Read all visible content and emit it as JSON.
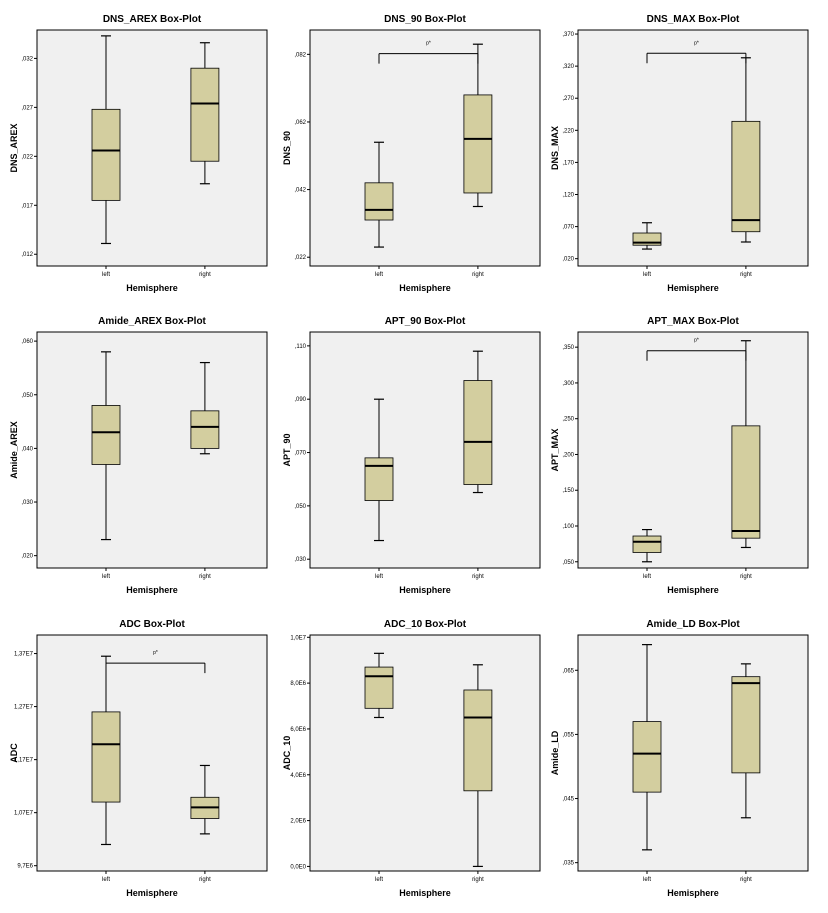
{
  "colors": {
    "box": "#d3ce9f",
    "plot_bg": "#f0f0f0",
    "line": "#000000"
  },
  "chart_data": [
    {
      "type": "box",
      "title": "DNS_AREX Box-Plot",
      "xlabel": "Hemisphere",
      "ylabel": "DNS_AREX",
      "categories": [
        "left",
        "right"
      ],
      "ylim": [
        0.0108,
        0.0349
      ],
      "yticks": [
        0.012,
        0.017,
        0.022,
        0.027,
        0.032
      ],
      "ytick_labels": [
        ",012",
        ",017",
        ",022",
        ",027",
        ",032"
      ],
      "boxes": [
        {
          "min": 0.0131,
          "q1": 0.0175,
          "median": 0.0226,
          "q3": 0.0268,
          "max": 0.0343
        },
        {
          "min": 0.0192,
          "q1": 0.0215,
          "median": 0.0274,
          "q3": 0.031,
          "max": 0.0336
        }
      ],
      "significance": null
    },
    {
      "type": "box",
      "title": "DNS_90 Box-Plot",
      "xlabel": "Hemisphere",
      "ylabel": "DNS_90",
      "categories": [
        "left",
        "right"
      ],
      "ylim": [
        0.0194,
        0.0892
      ],
      "yticks": [
        0.022,
        0.042,
        0.062,
        0.082
      ],
      "ytick_labels": [
        ",022",
        ",042",
        ",062",
        ",082"
      ],
      "boxes": [
        {
          "min": 0.025,
          "q1": 0.033,
          "median": 0.036,
          "q3": 0.044,
          "max": 0.056
        },
        {
          "min": 0.037,
          "q1": 0.041,
          "median": 0.057,
          "q3": 0.07,
          "max": 0.085
        }
      ],
      "significance": {
        "label": "p*",
        "value": 0.0822
      }
    },
    {
      "type": "box",
      "title": "DNS_MAX Box-Plot",
      "xlabel": "Hemisphere",
      "ylabel": "DNS_MAX",
      "categories": [
        "left",
        "right"
      ],
      "ylim": [
        0.0086,
        0.3763
      ],
      "yticks": [
        0.02,
        0.07,
        0.12,
        0.17,
        0.22,
        0.27,
        0.32,
        0.37
      ],
      "ytick_labels": [
        ",020",
        ",070",
        ",120",
        ",170",
        ",220",
        ",270",
        ",320",
        ",370"
      ],
      "boxes": [
        {
          "min": 0.035,
          "q1": 0.041,
          "median": 0.045,
          "q3": 0.06,
          "max": 0.076
        },
        {
          "min": 0.046,
          "q1": 0.062,
          "median": 0.08,
          "q3": 0.234,
          "max": 0.333
        }
      ],
      "significance": {
        "label": "p*",
        "value": 0.34
      }
    },
    {
      "type": "box",
      "title": "Amide_AREX Box-Plot",
      "xlabel": "Hemisphere",
      "ylabel": "Amide_AREX",
      "categories": [
        "left",
        "right"
      ],
      "ylim": [
        0.0177,
        0.0617
      ],
      "yticks": [
        0.02,
        0.03,
        0.04,
        0.05,
        0.06
      ],
      "ytick_labels": [
        ",020",
        ",030",
        ",040",
        ",050",
        ",060"
      ],
      "boxes": [
        {
          "min": 0.023,
          "q1": 0.037,
          "median": 0.043,
          "q3": 0.048,
          "max": 0.058
        },
        {
          "min": 0.039,
          "q1": 0.04,
          "median": 0.044,
          "q3": 0.047,
          "max": 0.056
        }
      ],
      "significance": null
    },
    {
      "type": "box",
      "title": "APT_90 Box-Plot",
      "xlabel": "Hemisphere",
      "ylabel": "APT_90",
      "categories": [
        "left",
        "right"
      ],
      "ylim": [
        0.0267,
        0.1152
      ],
      "yticks": [
        0.03,
        0.05,
        0.07,
        0.09,
        0.11
      ],
      "ytick_labels": [
        ",030",
        ",050",
        ",070",
        ",090",
        ",110"
      ],
      "boxes": [
        {
          "min": 0.037,
          "q1": 0.052,
          "median": 0.065,
          "q3": 0.068,
          "max": 0.09
        },
        {
          "min": 0.055,
          "q1": 0.058,
          "median": 0.074,
          "q3": 0.097,
          "max": 0.108
        }
      ],
      "significance": null
    },
    {
      "type": "box",
      "title": "APT_MAX Box-Plot",
      "xlabel": "Hemisphere",
      "ylabel": "APT_MAX",
      "categories": [
        "left",
        "right"
      ],
      "ylim": [
        0.0413,
        0.3712
      ],
      "yticks": [
        0.05,
        0.1,
        0.15,
        0.2,
        0.25,
        0.3,
        0.35
      ],
      "ytick_labels": [
        ",050",
        ",100",
        ",150",
        ",200",
        ",250",
        ",300",
        ",350"
      ],
      "boxes": [
        {
          "min": 0.05,
          "q1": 0.063,
          "median": 0.078,
          "q3": 0.086,
          "max": 0.095
        },
        {
          "min": 0.07,
          "q1": 0.083,
          "median": 0.093,
          "q3": 0.24,
          "max": 0.359
        }
      ],
      "significance": {
        "label": "p*",
        "value": 0.345
      }
    },
    {
      "type": "box",
      "title": "ADC Box-Plot",
      "xlabel": "Hemisphere",
      "ylabel": "ADC",
      "categories": [
        "left",
        "right"
      ],
      "ylim": [
        9600000,
        14050000
      ],
      "yticks": [
        9700000,
        10700000,
        11700000,
        12700000,
        13700000
      ],
      "ytick_labels": [
        "9,7E6",
        "1,07E7",
        "1,17E7",
        "1,27E7",
        "1,37E7"
      ],
      "boxes": [
        {
          "min": 10100000,
          "q1": 10900000,
          "median": 11990000,
          "q3": 12600000,
          "max": 13650000
        },
        {
          "min": 10300000,
          "q1": 10590000,
          "median": 10800000,
          "q3": 10990000,
          "max": 11590000
        }
      ],
      "significance": {
        "label": "p*",
        "value": 13520000
      }
    },
    {
      "type": "box",
      "title": "ADC_10 Box-Plot",
      "xlabel": "Hemisphere",
      "ylabel": "ADC_10",
      "categories": [
        "left",
        "right"
      ],
      "ylim": [
        -200000,
        10100000
      ],
      "yticks": [
        0,
        2000000,
        4000000,
        6000000,
        8000000,
        10000000
      ],
      "ytick_labels": [
        "0,0E0",
        "2,0E6",
        "4,0E6",
        "6,0E6",
        "8,0E6",
        "1,0E7"
      ],
      "boxes": [
        {
          "min": 6500000,
          "q1": 6900000,
          "median": 8300000,
          "q3": 8700000,
          "max": 9300000
        },
        {
          "min": 0,
          "q1": 3300000,
          "median": 6500000,
          "q3": 7700000,
          "max": 8800000
        }
      ],
      "significance": null
    },
    {
      "type": "box",
      "title": "Amide_LD Box-Plot",
      "xlabel": "Hemisphere",
      "ylabel": "Amide_LD",
      "categories": [
        "left",
        "right"
      ],
      "ylim": [
        0.0337,
        0.0705
      ],
      "yticks": [
        0.035,
        0.045,
        0.055,
        0.065
      ],
      "ytick_labels": [
        ",035",
        ",045",
        ",055",
        ",065"
      ],
      "boxes": [
        {
          "min": 0.037,
          "q1": 0.046,
          "median": 0.052,
          "q3": 0.057,
          "max": 0.069
        },
        {
          "min": 0.042,
          "q1": 0.049,
          "median": 0.063,
          "q3": 0.064,
          "max": 0.066
        }
      ],
      "significance": null
    }
  ]
}
